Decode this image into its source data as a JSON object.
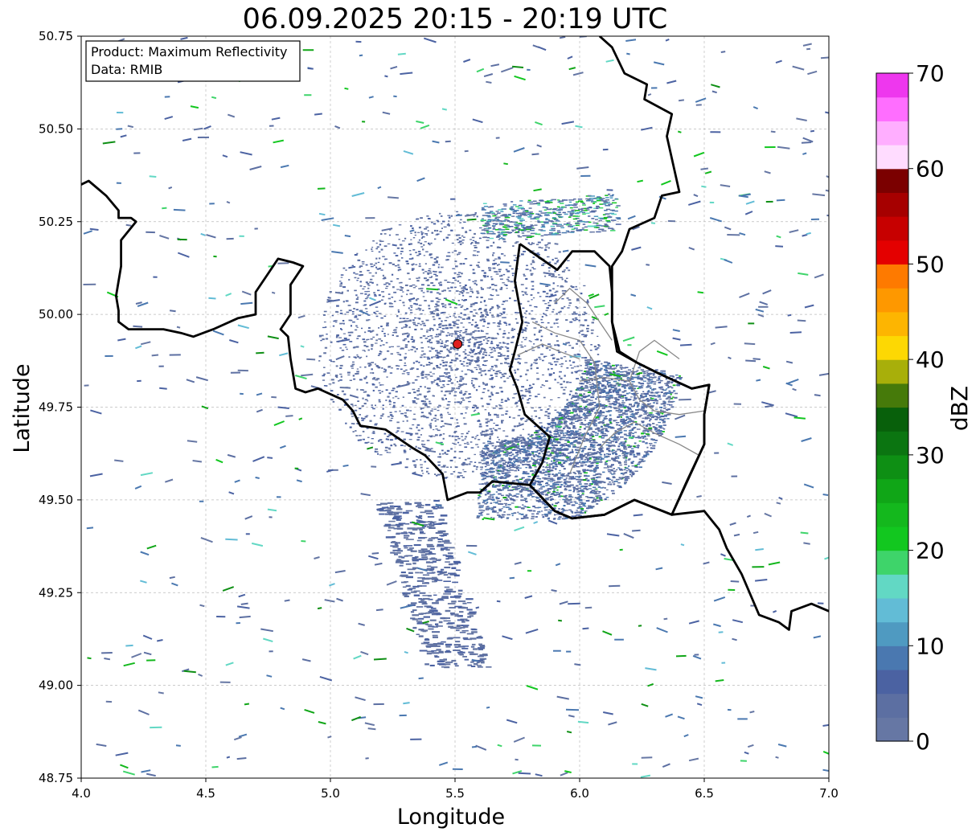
{
  "title": "06.09.2025 20:15 - 20:19 UTC",
  "info_box": {
    "line1": "Product: Maximum Reflectivity",
    "line2": "Data: RMIB"
  },
  "colors": {
    "border": "#000000",
    "admin_lines": "#888888",
    "grid": "#bbbbbb",
    "radar_marker": "#e02020"
  },
  "chart_data": {
    "type": "heatmap",
    "title": "06.09.2025 20:15 - 20:19 UTC",
    "xlabel": "Longitude",
    "ylabel": "Latitude",
    "xlim": [
      4.0,
      7.0
    ],
    "ylim": [
      48.75,
      50.75
    ],
    "xticks": [
      "4.0",
      "4.5",
      "5.0",
      "5.5",
      "6.0",
      "6.5",
      "7.0"
    ],
    "yticks": [
      "48.75",
      "49.00",
      "49.25",
      "49.50",
      "49.75",
      "50.00",
      "50.25",
      "50.50",
      "50.75"
    ],
    "xtick_values": [
      4.0,
      4.5,
      5.0,
      5.5,
      6.0,
      6.5,
      7.0
    ],
    "ytick_values": [
      48.75,
      49.0,
      49.25,
      49.5,
      49.75,
      50.0,
      50.25,
      50.5,
      50.75
    ],
    "grid": true,
    "radar_site": {
      "lon": 5.51,
      "lat": 49.92
    },
    "colorbar": {
      "label": "dBZ",
      "min": 0,
      "max": 70,
      "ticks": [
        "0",
        "10",
        "20",
        "30",
        "40",
        "50",
        "60",
        "70"
      ],
      "tick_values": [
        0,
        10,
        20,
        30,
        40,
        50,
        60,
        70
      ],
      "colors": [
        "#6677a4",
        "#5c6fa2",
        "#4b62a2",
        "#4a78b0",
        "#4f9ac1",
        "#62bcd6",
        "#62d8c4",
        "#3ed46a",
        "#12c71f",
        "#14b81d",
        "#10a617",
        "#0e8f14",
        "#0b7511",
        "#08600b",
        "#467a0a",
        "#a8af0a",
        "#fdd803",
        "#fdb501",
        "#fe9800",
        "#fe7a00",
        "#e40000",
        "#c70000",
        "#a60000",
        "#7b0000",
        "#ffdcff",
        "#ffaeff",
        "#ff6eff",
        "#ee37ee"
      ]
    },
    "borders": [
      [
        [
          4.0,
          50.35
        ],
        [
          4.03,
          50.36
        ],
        [
          4.1,
          50.32
        ],
        [
          4.15,
          50.28
        ],
        [
          4.15,
          50.26
        ],
        [
          4.2,
          50.26
        ],
        [
          4.22,
          50.25
        ],
        [
          4.16,
          50.2
        ],
        [
          4.16,
          50.13
        ],
        [
          4.14,
          50.05
        ],
        [
          4.15,
          50.01
        ],
        [
          4.15,
          49.98
        ],
        [
          4.19,
          49.96
        ],
        [
          4.33,
          49.96
        ],
        [
          4.4,
          49.95
        ],
        [
          4.45,
          49.94
        ],
        [
          4.53,
          49.96
        ],
        [
          4.63,
          49.99
        ],
        [
          4.7,
          50.0
        ],
        [
          4.7,
          50.06
        ],
        [
          4.75,
          50.11
        ],
        [
          4.79,
          50.15
        ],
        [
          4.85,
          50.14
        ],
        [
          4.89,
          50.13
        ],
        [
          4.84,
          50.08
        ],
        [
          4.84,
          50.0
        ],
        [
          4.8,
          49.96
        ],
        [
          4.83,
          49.94
        ],
        [
          4.84,
          49.88
        ],
        [
          4.86,
          49.8
        ],
        [
          4.9,
          49.79
        ],
        [
          4.95,
          49.8
        ],
        [
          5.05,
          49.77
        ],
        [
          5.09,
          49.74
        ],
        [
          5.12,
          49.7
        ],
        [
          5.22,
          49.69
        ],
        [
          5.33,
          49.64
        ],
        [
          5.38,
          49.62
        ],
        [
          5.45,
          49.57
        ],
        [
          5.47,
          49.5
        ],
        [
          5.55,
          49.52
        ],
        [
          5.6,
          49.52
        ],
        [
          5.65,
          49.55
        ],
        [
          5.8,
          49.54
        ],
        [
          5.9,
          49.47
        ],
        [
          5.97,
          49.45
        ],
        [
          6.1,
          49.46
        ],
        [
          6.22,
          49.5
        ],
        [
          6.37,
          49.46
        ],
        [
          6.5,
          49.47
        ],
        [
          6.56,
          49.42
        ],
        [
          6.59,
          49.37
        ],
        [
          6.65,
          49.3
        ],
        [
          6.72,
          49.19
        ],
        [
          6.8,
          49.17
        ],
        [
          6.84,
          49.15
        ],
        [
          6.85,
          49.2
        ],
        [
          6.93,
          49.22
        ],
        [
          7.0,
          49.2
        ]
      ],
      [
        [
          6.08,
          50.75
        ],
        [
          6.13,
          50.72
        ],
        [
          6.18,
          50.65
        ],
        [
          6.27,
          50.62
        ],
        [
          6.26,
          50.58
        ],
        [
          6.37,
          50.54
        ],
        [
          6.35,
          50.48
        ],
        [
          6.4,
          50.33
        ],
        [
          6.33,
          50.32
        ],
        [
          6.3,
          50.26
        ],
        [
          6.2,
          50.23
        ],
        [
          6.17,
          50.17
        ],
        [
          6.13,
          50.13
        ],
        [
          6.13,
          50.06
        ],
        [
          6.13,
          49.98
        ],
        [
          6.15,
          49.9
        ],
        [
          6.23,
          49.87
        ],
        [
          6.32,
          49.84
        ],
        [
          6.45,
          49.8
        ],
        [
          6.52,
          49.81
        ],
        [
          6.5,
          49.73
        ],
        [
          6.5,
          49.65
        ],
        [
          6.43,
          49.55
        ],
        [
          6.37,
          49.46
        ]
      ],
      [
        [
          5.76,
          50.19
        ],
        [
          5.91,
          50.12
        ],
        [
          5.97,
          50.17
        ],
        [
          6.06,
          50.17
        ],
        [
          6.12,
          50.13
        ],
        [
          6.13,
          50.06
        ],
        [
          6.13,
          49.98
        ],
        [
          6.16,
          49.9
        ],
        [
          6.23,
          49.87
        ],
        [
          6.32,
          49.84
        ],
        [
          6.45,
          49.8
        ],
        [
          6.52,
          49.81
        ],
        [
          6.5,
          49.73
        ],
        [
          6.5,
          49.65
        ],
        [
          6.37,
          49.46
        ],
        [
          6.22,
          49.5
        ],
        [
          6.1,
          49.46
        ],
        [
          5.97,
          49.45
        ],
        [
          5.9,
          49.47
        ],
        [
          5.8,
          49.54
        ],
        [
          5.85,
          49.6
        ],
        [
          5.88,
          49.67
        ],
        [
          5.78,
          49.73
        ],
        [
          5.75,
          49.8
        ],
        [
          5.72,
          49.85
        ],
        [
          5.74,
          49.9
        ],
        [
          5.77,
          49.98
        ],
        [
          5.74,
          50.09
        ],
        [
          5.76,
          50.19
        ]
      ]
    ],
    "admin_lines": [
      [
        [
          5.81,
          49.98
        ],
        [
          5.9,
          49.95
        ],
        [
          6.0,
          49.93
        ],
        [
          6.06,
          49.87
        ],
        [
          6.08,
          49.75
        ],
        [
          6.02,
          49.67
        ],
        [
          5.96,
          49.57
        ]
      ],
      [
        [
          5.9,
          50.03
        ],
        [
          5.96,
          50.07
        ],
        [
          6.03,
          50.03
        ],
        [
          6.09,
          49.97
        ],
        [
          6.13,
          49.93
        ]
      ],
      [
        [
          6.0,
          49.82
        ],
        [
          6.1,
          49.83
        ],
        [
          6.2,
          49.82
        ],
        [
          6.24,
          49.77
        ],
        [
          6.3,
          49.74
        ],
        [
          6.4,
          49.73
        ],
        [
          6.5,
          49.74
        ]
      ],
      [
        [
          6.08,
          49.64
        ],
        [
          6.14,
          49.68
        ],
        [
          6.22,
          49.71
        ],
        [
          6.3,
          49.68
        ],
        [
          6.4,
          49.65
        ],
        [
          6.48,
          49.62
        ]
      ],
      [
        [
          5.75,
          49.89
        ],
        [
          5.85,
          49.92
        ],
        [
          5.92,
          49.9
        ],
        [
          6.0,
          49.88
        ]
      ],
      [
        [
          6.2,
          49.82
        ],
        [
          6.24,
          49.9
        ],
        [
          6.3,
          49.93
        ],
        [
          6.4,
          49.88
        ]
      ]
    ]
  }
}
